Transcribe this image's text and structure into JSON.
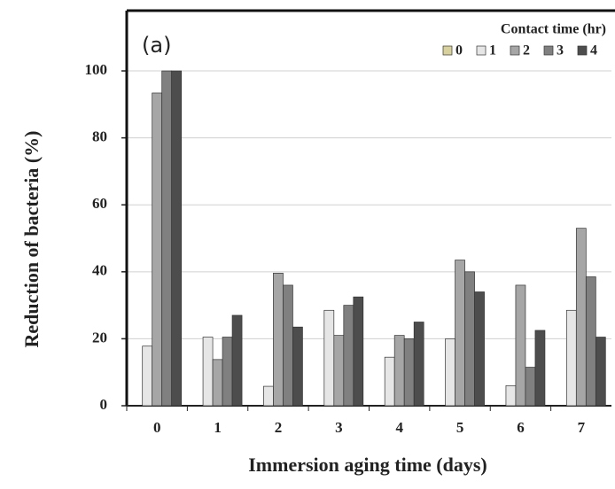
{
  "chart_data": {
    "type": "bar",
    "annotation": "(a)",
    "x_label": "Immersion aging time (days)",
    "y_label": "Reduction of bacteria (%)",
    "legend_title": "Contact time (hr)",
    "legend_position": "upper right",
    "categories": [
      "0",
      "1",
      "2",
      "3",
      "4",
      "5",
      "6",
      "7"
    ],
    "series": [
      {
        "name": "0",
        "color": "#d8d19c",
        "values": [
          0,
          0,
          0,
          0,
          0,
          0,
          0,
          0
        ]
      },
      {
        "name": "1",
        "color": "#e6e6e6",
        "values": [
          17.8,
          20.5,
          5.8,
          28.5,
          14.5,
          20,
          6,
          28.5
        ]
      },
      {
        "name": "2",
        "color": "#a6a6a6",
        "values": [
          93.4,
          13.8,
          39.6,
          21,
          21,
          43.5,
          36,
          53
        ]
      },
      {
        "name": "3",
        "color": "#808080",
        "values": [
          100,
          20.5,
          36,
          30,
          20,
          40,
          11.5,
          38.5
        ]
      },
      {
        "name": "4",
        "color": "#4d4d4d",
        "values": [
          100,
          27,
          23.5,
          32.5,
          25,
          34,
          22.5,
          20.5
        ]
      }
    ],
    "ylim": [
      0,
      118
    ],
    "yticks": [
      0,
      20,
      40,
      60,
      80,
      100
    ],
    "grid": true
  }
}
